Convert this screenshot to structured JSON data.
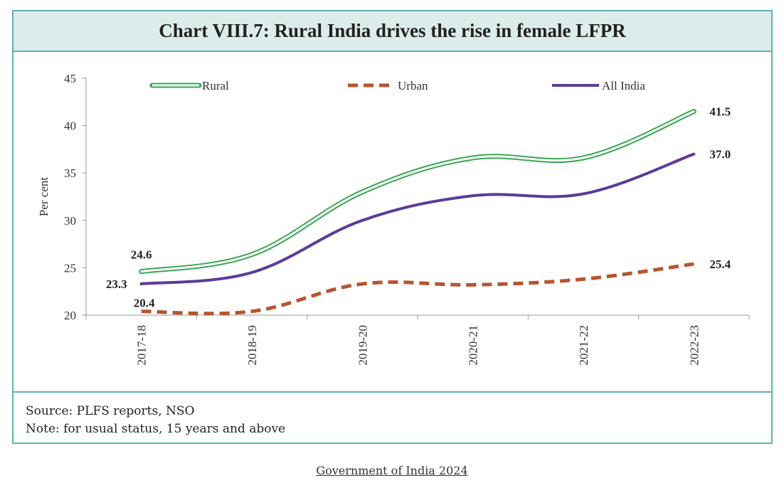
{
  "chart_data": {
    "type": "line",
    "title": "Chart VIII.7: Rural India drives the rise in female LFPR",
    "ylabel": "Per cent",
    "xlabel": "",
    "ylim": [
      20,
      45
    ],
    "yticks": [
      "20",
      "25",
      "30",
      "35",
      "40",
      "45"
    ],
    "categories": [
      "2017-18",
      "2018-19",
      "2019-20",
      "2020-21",
      "2021-22",
      "2022-23"
    ],
    "series": [
      {
        "name": "Rural",
        "values": [
          24.6,
          26.4,
          33.0,
          36.6,
          36.6,
          41.5
        ],
        "color": "#3aa655",
        "style": "double"
      },
      {
        "name": "Urban",
        "values": [
          20.4,
          20.4,
          23.3,
          23.2,
          23.8,
          25.4
        ],
        "color": "#b5552f",
        "style": "dashed"
      },
      {
        "name": "All India",
        "values": [
          23.3,
          24.5,
          30.0,
          32.6,
          32.8,
          37.0
        ],
        "color": "#5b3c97",
        "style": "solid"
      }
    ],
    "data_labels": [
      {
        "text": "24.6",
        "series": "Rural",
        "index": 0
      },
      {
        "text": "23.3",
        "series": "All India",
        "index": 0
      },
      {
        "text": "20.4",
        "series": "Urban",
        "index": 0
      },
      {
        "text": "41.5",
        "series": "Rural",
        "index": 5
      },
      {
        "text": "37.0",
        "series": "All India",
        "index": 5
      },
      {
        "text": "25.4",
        "series": "Urban",
        "index": 5
      }
    ],
    "legend_position": "top"
  },
  "notes": {
    "source": "Source: PLFS reports, NSO",
    "note": "Note: for usual status, 15 years and above"
  },
  "credit": "Government of India 2024"
}
